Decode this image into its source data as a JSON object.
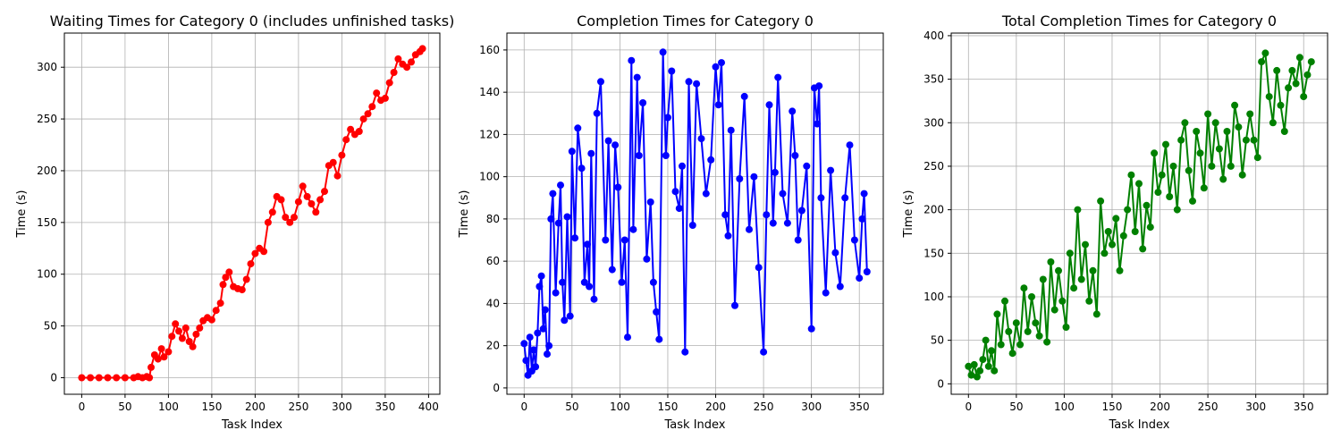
{
  "chart_data": [
    {
      "type": "line",
      "title": "Waiting Times for Category 0 (includes unfinished tasks)",
      "xlabel": "Task Index",
      "ylabel": "Time (s)",
      "xlim": [
        -20,
        413
      ],
      "ylim": [
        -16,
        333
      ],
      "xticks": [
        0,
        50,
        100,
        150,
        200,
        250,
        300,
        350,
        400
      ],
      "yticks": [
        0,
        50,
        100,
        150,
        200,
        250,
        300
      ],
      "grid": true,
      "color": "#ff0000",
      "marker": "circle",
      "series": [
        {
          "x": [
            0,
            10,
            20,
            30,
            40,
            50,
            60,
            65,
            70,
            75,
            78,
            80,
            84,
            88,
            92,
            95,
            100,
            104,
            108,
            112,
            116,
            120,
            124,
            128,
            132,
            136,
            140,
            145,
            150,
            155,
            160,
            163,
            166,
            170,
            175,
            180,
            185,
            190,
            195,
            200,
            205,
            210,
            215,
            220,
            225,
            230,
            235,
            240,
            245,
            250,
            255,
            260,
            265,
            270,
            275,
            280,
            285,
            290,
            295,
            300,
            305,
            310,
            315,
            320,
            325,
            330,
            335,
            340,
            345,
            350,
            355,
            360,
            365,
            370,
            375,
            380,
            385,
            390,
            393
          ],
          "y": [
            0,
            0,
            0,
            0,
            0,
            0,
            0,
            1,
            0,
            1,
            0,
            10,
            22,
            18,
            28,
            20,
            25,
            40,
            52,
            45,
            38,
            48,
            35,
            30,
            42,
            48,
            55,
            58,
            56,
            65,
            72,
            90,
            97,
            102,
            88,
            86,
            85,
            95,
            110,
            120,
            125,
            122,
            150,
            160,
            175,
            172,
            155,
            150,
            155,
            170,
            185,
            175,
            168,
            160,
            172,
            180,
            205,
            208,
            195,
            215,
            230,
            240,
            235,
            238,
            250,
            255,
            262,
            275,
            268,
            270,
            285,
            295,
            308,
            303,
            300,
            305,
            312,
            315,
            318
          ]
        }
      ]
    },
    {
      "type": "line",
      "title": "Completion Times for Category 0",
      "xlabel": "Task Index",
      "ylabel": "Time (s)",
      "xlim": [
        -18,
        375
      ],
      "ylim": [
        -3,
        168
      ],
      "xticks": [
        0,
        50,
        100,
        150,
        200,
        250,
        300,
        350
      ],
      "yticks": [
        0,
        20,
        40,
        60,
        80,
        100,
        120,
        140,
        160
      ],
      "grid": true,
      "color": "#0000ff",
      "marker": "circle",
      "series": [
        {
          "x": [
            0,
            2,
            4,
            6,
            8,
            10,
            12,
            14,
            16,
            18,
            20,
            22,
            24,
            26,
            28,
            30,
            33,
            36,
            38,
            40,
            42,
            45,
            48,
            50,
            53,
            56,
            60,
            63,
            66,
            68,
            70,
            73,
            76,
            80,
            85,
            88,
            92,
            95,
            98,
            102,
            105,
            108,
            112,
            114,
            118,
            120,
            124,
            128,
            132,
            135,
            138,
            141,
            145,
            148,
            150,
            154,
            158,
            162,
            165,
            168,
            172,
            176,
            180,
            185,
            190,
            195,
            200,
            203,
            206,
            210,
            213,
            216,
            220,
            225,
            230,
            235,
            240,
            245,
            250,
            253,
            256,
            260,
            262,
            265,
            270,
            275,
            280,
            283,
            286,
            290,
            295,
            300,
            303,
            306,
            308,
            310,
            315,
            320,
            325,
            330,
            335,
            340,
            345,
            350,
            353,
            355,
            358
          ],
          "y": [
            21,
            13,
            6,
            24,
            8,
            18,
            10,
            26,
            48,
            53,
            28,
            37,
            16,
            20,
            80,
            92,
            45,
            78,
            96,
            50,
            32,
            81,
            34,
            112,
            71,
            123,
            104,
            50,
            68,
            48,
            111,
            42,
            130,
            145,
            70,
            117,
            56,
            115,
            95,
            50,
            70,
            24,
            155,
            75,
            147,
            110,
            135,
            61,
            88,
            50,
            36,
            23,
            159,
            110,
            128,
            150,
            93,
            85,
            105,
            17,
            145,
            77,
            144,
            118,
            92,
            108,
            152,
            134,
            154,
            82,
            72,
            122,
            39,
            99,
            138,
            75,
            100,
            57,
            17,
            82,
            134,
            78,
            102,
            147,
            92,
            78,
            131,
            110,
            70,
            84,
            105,
            28,
            142,
            125,
            143,
            90,
            45,
            103,
            64,
            48,
            90,
            115,
            70,
            52,
            80,
            92,
            55
          ]
        }
      ]
    },
    {
      "type": "line",
      "title": "Total Completion Times for Category 0",
      "xlabel": "Task Index",
      "ylabel": "Time (s)",
      "xlim": [
        -18,
        375
      ],
      "ylim": [
        -12,
        403
      ],
      "xticks": [
        0,
        50,
        100,
        150,
        200,
        250,
        300,
        350
      ],
      "yticks": [
        0,
        50,
        100,
        150,
        200,
        250,
        300,
        350,
        400
      ],
      "grid": true,
      "color": "#008000",
      "marker": "circle",
      "series": [
        {
          "x": [
            0,
            3,
            6,
            9,
            12,
            15,
            18,
            21,
            24,
            27,
            30,
            34,
            38,
            42,
            46,
            50,
            54,
            58,
            62,
            66,
            70,
            74,
            78,
            82,
            86,
            90,
            94,
            98,
            102,
            106,
            110,
            114,
            118,
            122,
            126,
            130,
            134,
            138,
            142,
            146,
            150,
            154,
            158,
            162,
            166,
            170,
            174,
            178,
            182,
            186,
            190,
            194,
            198,
            202,
            206,
            210,
            214,
            218,
            222,
            226,
            230,
            234,
            238,
            242,
            246,
            250,
            254,
            258,
            262,
            266,
            270,
            274,
            278,
            282,
            286,
            290,
            294,
            298,
            302,
            306,
            310,
            314,
            318,
            322,
            326,
            330,
            334,
            338,
            342,
            346,
            350,
            354,
            358
          ],
          "y": [
            20,
            10,
            22,
            8,
            15,
            28,
            50,
            20,
            38,
            15,
            80,
            45,
            95,
            60,
            35,
            70,
            45,
            110,
            60,
            100,
            70,
            55,
            120,
            48,
            140,
            85,
            130,
            95,
            65,
            150,
            110,
            200,
            120,
            160,
            95,
            130,
            80,
            210,
            150,
            175,
            160,
            190,
            130,
            170,
            200,
            240,
            175,
            230,
            155,
            205,
            180,
            265,
            220,
            240,
            275,
            215,
            250,
            200,
            280,
            300,
            245,
            210,
            290,
            265,
            225,
            310,
            250,
            300,
            270,
            235,
            290,
            250,
            320,
            295,
            240,
            280,
            310,
            280,
            260,
            370,
            380,
            330,
            300,
            360,
            320,
            290,
            340,
            360,
            345,
            375,
            330,
            355,
            370
          ]
        }
      ]
    }
  ]
}
